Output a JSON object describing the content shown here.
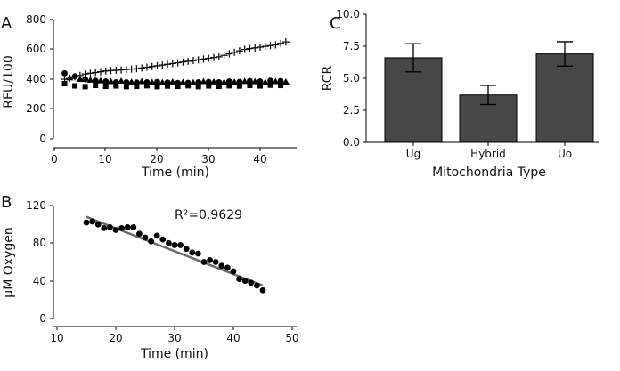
{
  "chart_data": [
    {
      "panel": "A",
      "type": "scatter",
      "xlabel": "Time (min)",
      "ylabel": "RFU/100",
      "xlim": [
        0,
        46
      ],
      "ylim": [
        0,
        800
      ],
      "xticks": [
        0,
        10,
        20,
        30,
        40
      ],
      "yticks": [
        0,
        200,
        400,
        600,
        800
      ],
      "series": [
        {
          "name": "cross",
          "marker": "plus",
          "x": [
            2,
            3,
            4,
            5,
            6,
            7,
            8,
            9,
            10,
            11,
            12,
            13,
            14,
            15,
            16,
            17,
            18,
            19,
            20,
            21,
            22,
            23,
            24,
            25,
            26,
            27,
            28,
            29,
            30,
            31,
            32,
            33,
            34,
            35,
            36,
            37,
            38,
            39,
            40,
            41,
            42,
            43,
            44,
            45
          ],
          "y": [
            400,
            405,
            415,
            425,
            435,
            440,
            445,
            450,
            455,
            458,
            460,
            462,
            465,
            468,
            470,
            475,
            480,
            485,
            490,
            495,
            500,
            505,
            510,
            515,
            520,
            525,
            530,
            535,
            540,
            545,
            550,
            560,
            570,
            580,
            590,
            600,
            605,
            610,
            615,
            620,
            625,
            630,
            640,
            650
          ]
        },
        {
          "name": "circle",
          "marker": "circle",
          "x": [
            2,
            4,
            6,
            8,
            10,
            12,
            14,
            16,
            18,
            20,
            22,
            24,
            26,
            28,
            30,
            32,
            34,
            36,
            38,
            40,
            42,
            44
          ],
          "y": [
            440,
            420,
            400,
            390,
            385,
            380,
            380,
            378,
            380,
            382,
            378,
            375,
            376,
            380,
            382,
            380,
            385,
            382,
            388,
            385,
            390,
            388
          ]
        },
        {
          "name": "triangle",
          "marker": "triangle",
          "x": [
            3,
            5,
            7,
            9,
            11,
            13,
            15,
            17,
            19,
            21,
            23,
            25,
            27,
            29,
            31,
            33,
            35,
            37,
            39,
            41,
            43,
            45
          ],
          "y": [
            410,
            400,
            395,
            390,
            385,
            388,
            382,
            385,
            380,
            378,
            382,
            380,
            378,
            385,
            383,
            380,
            382,
            386,
            384,
            380,
            385,
            382
          ]
        },
        {
          "name": "square",
          "marker": "square",
          "x": [
            2,
            4,
            6,
            8,
            10,
            12,
            14,
            16,
            18,
            20,
            22,
            24,
            26,
            28,
            30,
            32,
            34,
            36,
            38,
            40,
            42,
            44
          ],
          "y": [
            370,
            355,
            350,
            358,
            352,
            355,
            350,
            352,
            356,
            350,
            354,
            352,
            356,
            350,
            355,
            352,
            356,
            354,
            358,
            355,
            360,
            358
          ]
        }
      ]
    },
    {
      "panel": "B",
      "type": "scatter",
      "xlabel": "Time (min)",
      "ylabel": "μM Oxygen",
      "xlim": [
        10,
        50
      ],
      "ylim": [
        0,
        120
      ],
      "xticks": [
        10,
        20,
        30,
        40,
        50
      ],
      "yticks": [
        0,
        40,
        80,
        120
      ],
      "annotation": "R²=0.9629",
      "series": [
        {
          "name": "oxygen",
          "marker": "circle",
          "x": [
            15,
            16,
            17,
            18,
            19,
            20,
            21,
            22,
            23,
            24,
            25,
            26,
            27,
            28,
            29,
            30,
            31,
            32,
            33,
            34,
            35,
            36,
            37,
            38,
            39,
            40,
            41,
            42,
            43,
            44,
            45
          ],
          "y": [
            102,
            103,
            100,
            96,
            97,
            94,
            96,
            97,
            97,
            90,
            86,
            82,
            88,
            84,
            80,
            78,
            78,
            74,
            70,
            69,
            60,
            62,
            60,
            56,
            54,
            50,
            42,
            40,
            38,
            35,
            30
          ]
        }
      ],
      "fit": {
        "x": [
          15,
          45
        ],
        "y": [
          108,
          35
        ]
      }
    },
    {
      "panel": "C",
      "type": "bar",
      "xlabel": "Mitochondria Type",
      "ylabel": "RCR",
      "ylim": [
        0,
        10
      ],
      "yticks": [
        "0.0",
        "2.5",
        "5.0",
        "7.5",
        "10.0"
      ],
      "categories": [
        "Ug",
        "Hybrid",
        "Uo"
      ],
      "values": [
        6.6,
        3.7,
        6.9
      ],
      "errors": [
        1.1,
        0.75,
        0.95
      ],
      "bar_color": "#474747"
    }
  ]
}
